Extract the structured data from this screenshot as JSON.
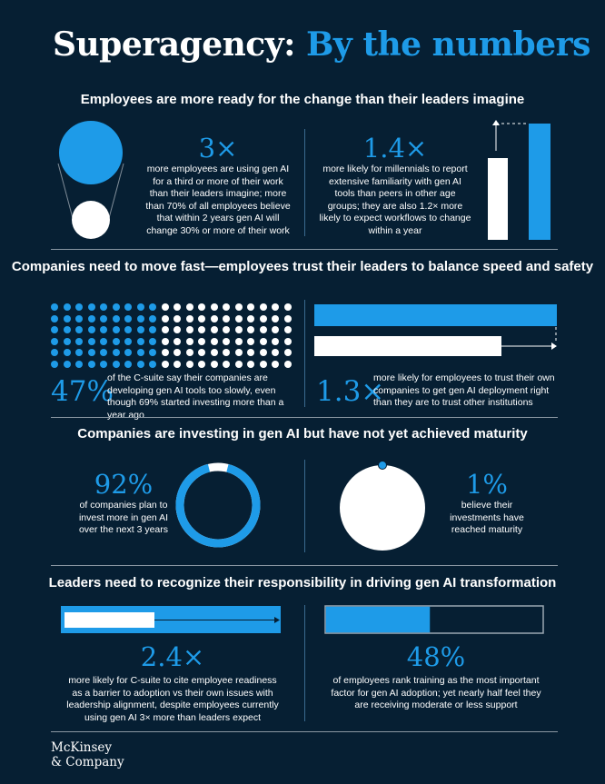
{
  "title": {
    "part1": "Superagency:",
    "part2": "By the numbers"
  },
  "sections": {
    "s1": {
      "heading": "Employees are more ready for the change than their leaders imagine",
      "left": {
        "stat": "3×",
        "text": "more employees are using gen AI for a third or more of their work than their leaders imagine; more than 70% of all employees believe that within 2 years gen AI will change 30% or more of their work"
      },
      "right": {
        "stat": "1.4×",
        "text": "more likely for millennials to report extensive familiarity with gen AI tools than peers in other age groups; they are also 1.2× more likely to expect workflows to change within a year"
      }
    },
    "s2": {
      "heading": "Companies need to move fast—employees trust their leaders to balance speed and safety",
      "left": {
        "stat": "47%",
        "text": "of the C-suite say their companies are developing gen AI tools too slowly, even though 69% started investing more than a year ago"
      },
      "right": {
        "stat": "1.3×",
        "text": "more likely for employees to trust their own companies to get gen AI deployment right than they are to trust other institutions"
      }
    },
    "s3": {
      "heading": "Companies are investing in gen AI but have not yet achieved maturity",
      "left": {
        "stat": "92%",
        "text": "of companies plan to invest more in gen AI over the next 3 years"
      },
      "right": {
        "stat": "1%",
        "text": "believe their investments have reached maturity"
      }
    },
    "s4": {
      "heading": "Leaders need to recognize their responsibility in driving gen AI transformation",
      "left": {
        "stat": "2.4×",
        "text": "more likely for C-suite to cite employee readiness as a barrier to adoption vs their own issues with leadership alignment, despite employees currently using gen AI 3× more than leaders expect"
      },
      "right": {
        "stat": "48%",
        "text": "of employees rank training as the most important factor for gen AI adoption; yet nearly half feel they are receiving moderate or less support"
      }
    }
  },
  "visuals": {
    "dot_grid_blue_share": 0.47,
    "donut_share": 0.92,
    "maturity_share": 0.01,
    "training_bar_share": 0.48,
    "trust_bar_ratio": 1.3,
    "ratio_3x": 3,
    "ratio_1_4x": 1.4,
    "ratio_2_4x": 2.4
  },
  "logo": {
    "line1": "McKinsey",
    "line2": "& Company"
  },
  "colors": {
    "background": "#061f33",
    "accent": "#1e9be8",
    "text": "#ffffff",
    "rule": "#8a97a3"
  }
}
